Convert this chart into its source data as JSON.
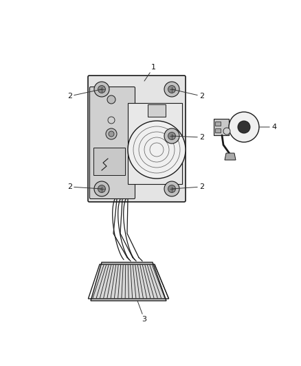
{
  "background_color": "#ffffff",
  "fig_width": 4.38,
  "fig_height": 5.33,
  "dpi": 100,
  "color_line": "#1a1a1a",
  "color_plate": "#e0e0e0",
  "color_mech": "#d8d8d8",
  "color_bolt_outer": "#b8b8b8",
  "color_bolt_inner": "#888888",
  "color_pad": "#c8c8c8"
}
